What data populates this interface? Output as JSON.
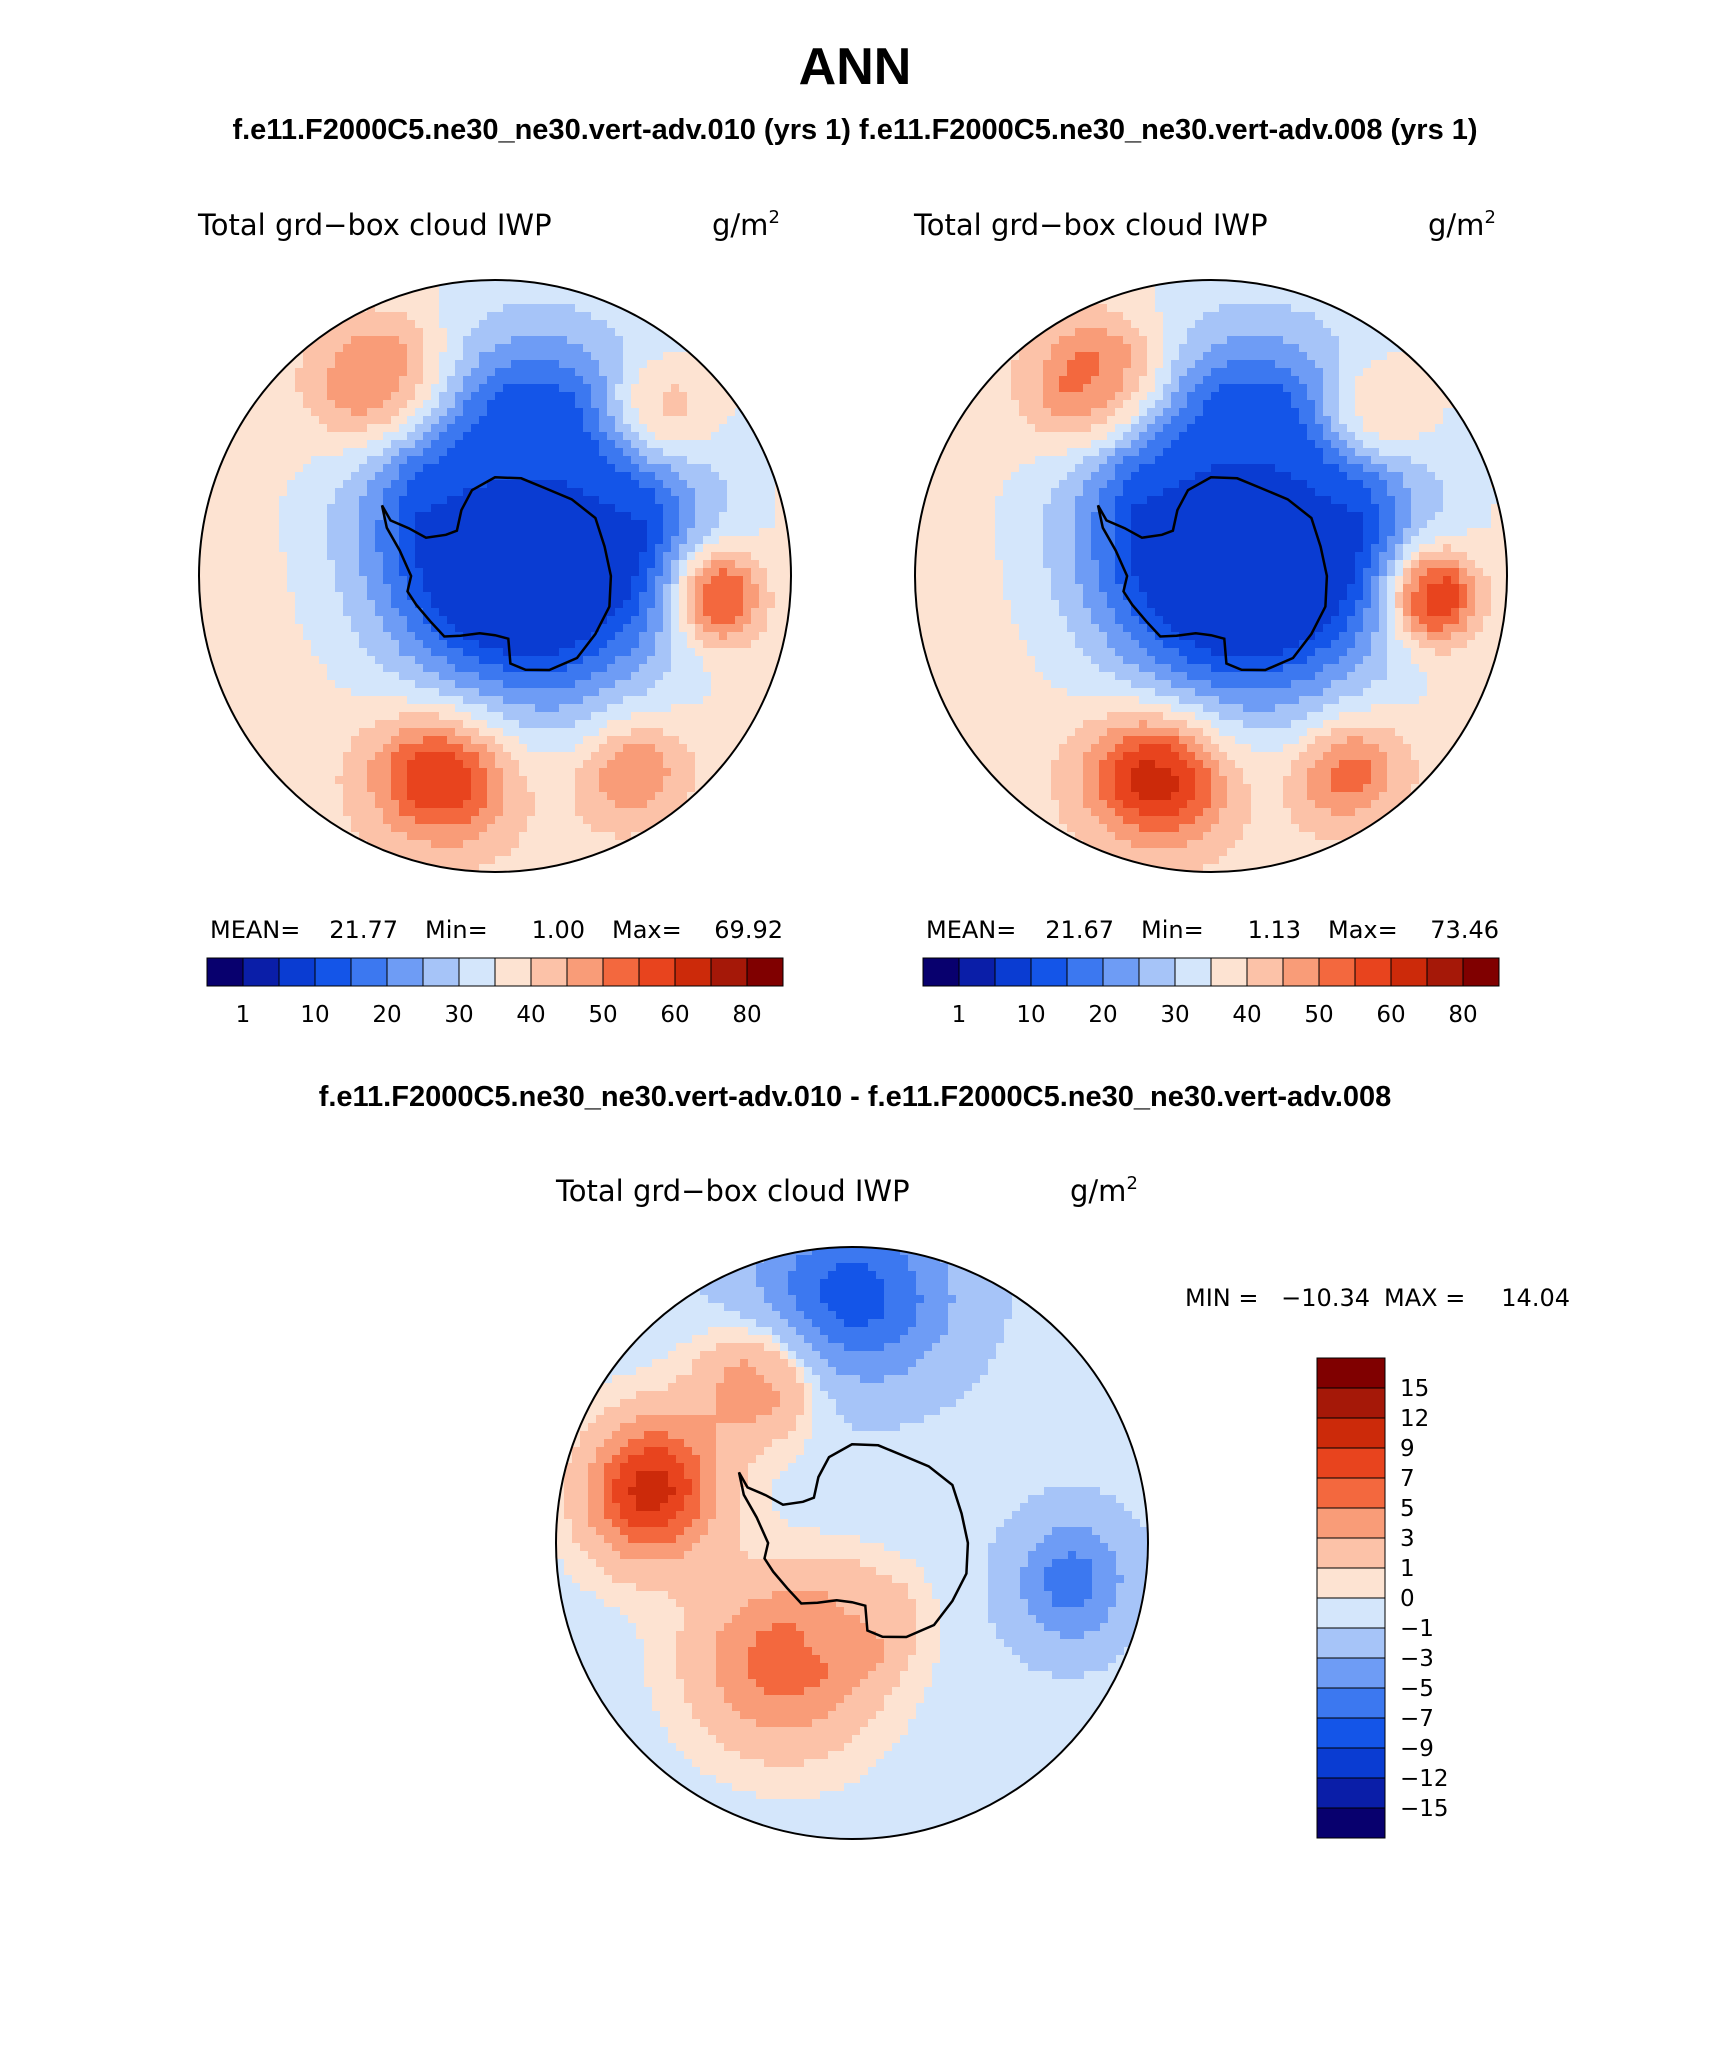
{
  "page": {
    "title": "ANN",
    "subtitle": "f.e11.F2000C5.ne30_ne30.vert-adv.010 (yrs 1) f.e11.F2000C5.ne30_ne30.vert-adv.008 (yrs 1)",
    "diff_title": "f.e11.F2000C5.ne30_ne30.vert-adv.010 - f.e11.F2000C5.ne30_ne30.vert-adv.008"
  },
  "colors": {
    "absolute_scale": [
      "#08006e",
      "#0a1ea8",
      "#0a3cd2",
      "#1455e8",
      "#3c78f0",
      "#6e9cf5",
      "#a6c4f8",
      "#d4e6fb",
      "#fde3d2",
      "#fcc2a8",
      "#f99c78",
      "#f3683e",
      "#e8441e",
      "#cc2a0a",
      "#a51808",
      "#800000"
    ],
    "diff_scale": [
      "#08006e",
      "#0a1ea8",
      "#0a3cd2",
      "#1455e8",
      "#3c78f0",
      "#6e9cf5",
      "#a6c4f8",
      "#d4e6fb",
      "#fde3d2",
      "#fcc2a8",
      "#f99c78",
      "#f3683e",
      "#e8441e",
      "#cc2a0a",
      "#a51808",
      "#800000"
    ],
    "coastline": "#000000"
  },
  "chart_data": [
    {
      "type": "heatmap",
      "projection": "south-polar-stereographic",
      "title": "Total grd−box cloud IWP",
      "units": "g/m",
      "units_sup": "2",
      "stats": {
        "mean_label": "MEAN=",
        "mean": "21.77",
        "min_label": "Min=",
        "min": "1.00",
        "max_label": "Max=",
        "max": "69.92"
      },
      "colorbar": {
        "orientation": "horizontal",
        "levels": [
          "1",
          "10",
          "20",
          "30",
          "40",
          "50",
          "60",
          "80"
        ]
      },
      "field": {
        "background": 38,
        "features": [
          {
            "name": "antarctic-ice-sheet",
            "lat": -83,
            "lon": 70,
            "radius_deg": 20,
            "value": 4
          },
          {
            "name": "southern-ocean-ring",
            "lat": -68,
            "lon": 20,
            "radius_deg": 22,
            "value": 14
          },
          {
            "name": "pacific-storm-track",
            "lat": -48,
            "lon": -165,
            "radius_deg": 9,
            "value": 63
          },
          {
            "name": "atlantic-storm-track",
            "lat": -45,
            "lon": -30,
            "radius_deg": 9,
            "value": 60
          },
          {
            "name": "indian-ocean-track",
            "lat": -43,
            "lon": 45,
            "radius_deg": 7,
            "value": 55
          },
          {
            "name": "south-indian-max",
            "lat": -45,
            "lon": 95,
            "radius_deg": 6,
            "value": 66
          },
          {
            "name": "tasman-sea",
            "lat": -42,
            "lon": 145,
            "radius_deg": 7,
            "value": 52
          }
        ]
      }
    },
    {
      "type": "heatmap",
      "projection": "south-polar-stereographic",
      "title": "Total grd−box cloud IWP",
      "units": "g/m",
      "units_sup": "2",
      "stats": {
        "mean_label": "MEAN=",
        "mean": "21.67",
        "min_label": "Min=",
        "min": "1.13",
        "max_label": "Max=",
        "max": "73.46"
      },
      "colorbar": {
        "orientation": "horizontal",
        "levels": [
          "1",
          "10",
          "20",
          "30",
          "40",
          "50",
          "60",
          "80"
        ]
      },
      "field": {
        "background": 38,
        "features": [
          {
            "name": "antarctic-ice-sheet",
            "lat": -83,
            "lon": 70,
            "radius_deg": 20,
            "value": 3
          },
          {
            "name": "southern-ocean-ring",
            "lat": -68,
            "lon": 20,
            "radius_deg": 22,
            "value": 14
          },
          {
            "name": "pacific-storm-track",
            "lat": -48,
            "lon": -165,
            "radius_deg": 9,
            "value": 66
          },
          {
            "name": "atlantic-storm-track",
            "lat": -45,
            "lon": -30,
            "radius_deg": 9,
            "value": 62
          },
          {
            "name": "indian-ocean-track",
            "lat": -43,
            "lon": 45,
            "radius_deg": 7,
            "value": 54
          },
          {
            "name": "south-indian-max",
            "lat": -45,
            "lon": 95,
            "radius_deg": 6,
            "value": 70
          },
          {
            "name": "tasman-sea",
            "lat": -42,
            "lon": 145,
            "radius_deg": 7,
            "value": 55
          }
        ]
      }
    },
    {
      "type": "heatmap",
      "projection": "south-polar-stereographic",
      "title": "Total grd−box cloud IWP",
      "units": "g/m",
      "units_sup": "2",
      "stats": {
        "min_label": "MIN =",
        "min": "−10.34",
        "max_label": "MAX =",
        "max": "14.04"
      },
      "colorbar": {
        "orientation": "vertical",
        "levels": [
          "15",
          "12",
          "9",
          "7",
          "5",
          "3",
          "1",
          "0",
          "−1",
          "−3",
          "−5",
          "−7",
          "−9",
          "−12",
          "−15"
        ]
      },
      "field": {
        "background": -0.5,
        "features": [
          {
            "name": "pacific-sector-increase",
            "lat": -62,
            "lon": -150,
            "radius_deg": 12,
            "value": 6
          },
          {
            "name": "east-pacific-increase",
            "lat": -48,
            "lon": -75,
            "radius_deg": 9,
            "value": 10
          },
          {
            "name": "subtropical-decrease",
            "lat": -40,
            "lon": 0,
            "radius_deg": 12,
            "value": -8
          },
          {
            "name": "indian-decrease",
            "lat": -45,
            "lon": 100,
            "radius_deg": 8,
            "value": -6
          },
          {
            "name": "ice-sheet-neutral",
            "lat": -80,
            "lon": 60,
            "radius_deg": 14,
            "value": -0.5
          },
          {
            "name": "ross-sea-increase",
            "lat": -74,
            "lon": 170,
            "radius_deg": 7,
            "value": 3
          },
          {
            "name": "atlantic-increase",
            "lat": -52,
            "lon": -30,
            "radius_deg": 8,
            "value": 5
          }
        ]
      }
    }
  ]
}
